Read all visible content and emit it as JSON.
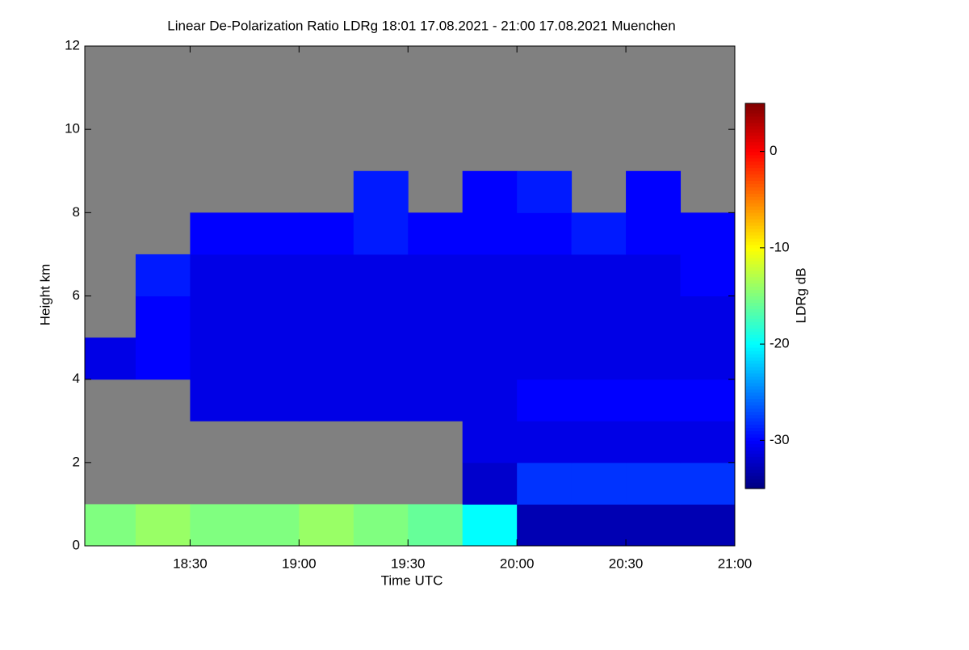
{
  "chart_data": {
    "type": "heatmap",
    "title": "Linear De-Polarization Ratio LDRg   18:01 17.08.2021 - 21:00 17.08.2021 Muenchen",
    "xlabel": "Time UTC",
    "ylabel": "Height km",
    "x_edges": [
      18.0167,
      18.25,
      18.5,
      18.75,
      19.0,
      19.25,
      19.5,
      19.75,
      20.0,
      20.25,
      20.5,
      20.75,
      21.0
    ],
    "y_edges": [
      0,
      1,
      2,
      3,
      4,
      5,
      6,
      7,
      8,
      9,
      10,
      11,
      12
    ],
    "z": [
      [
        -15,
        -14,
        -15,
        -15,
        -14,
        -15,
        -16,
        -20,
        -33,
        -33,
        -33,
        -33
      ],
      [
        null,
        null,
        null,
        null,
        null,
        null,
        null,
        -32,
        -28,
        -28,
        -28,
        -28
      ],
      [
        null,
        null,
        null,
        null,
        null,
        null,
        null,
        -31,
        -31,
        -31,
        -31,
        -31
      ],
      [
        null,
        null,
        -31,
        -31,
        -31,
        -31,
        -31,
        -31,
        -30,
        -30,
        -30,
        -30
      ],
      [
        -31,
        -30,
        -31,
        -31,
        -31,
        -31,
        -31,
        -31,
        -31,
        -31,
        -31,
        -31
      ],
      [
        null,
        -30,
        -31,
        -31,
        -31,
        -31,
        -31,
        -31,
        -31,
        -31,
        -31,
        -31
      ],
      [
        null,
        -29,
        -31,
        -31,
        -31,
        -31,
        -31,
        -31,
        -31,
        -31,
        -31,
        -30
      ],
      [
        null,
        null,
        -30,
        -30,
        -30,
        -29,
        -30,
        -30,
        -30,
        -29,
        -30,
        -30
      ],
      [
        null,
        null,
        null,
        null,
        null,
        -29,
        null,
        -30,
        -29,
        null,
        -30,
        null
      ],
      [
        null,
        null,
        null,
        null,
        null,
        null,
        null,
        null,
        null,
        null,
        null,
        null
      ],
      [
        null,
        null,
        null,
        null,
        null,
        null,
        null,
        null,
        null,
        null,
        null,
        null
      ],
      [
        null,
        null,
        null,
        null,
        null,
        null,
        null,
        null,
        null,
        null,
        null,
        null
      ]
    ],
    "xlim": [
      18.0167,
      21.0
    ],
    "xticks": [
      {
        "value": 18.5,
        "label": "18:30"
      },
      {
        "value": 19.0,
        "label": "19:00"
      },
      {
        "value": 19.5,
        "label": "19:30"
      },
      {
        "value": 20.0,
        "label": "20:00"
      },
      {
        "value": 20.5,
        "label": "20:30"
      },
      {
        "value": 21.0,
        "label": "21:00"
      }
    ],
    "ylim": [
      0,
      12
    ],
    "yticks": [
      0,
      2,
      4,
      6,
      8,
      10,
      12
    ],
    "colormap": "jet",
    "missing_color": "#808080",
    "colorbar": {
      "label": "LDRg dB",
      "lim": [
        -35,
        5
      ],
      "ticks": [
        0,
        -10,
        -20,
        -30
      ]
    }
  }
}
